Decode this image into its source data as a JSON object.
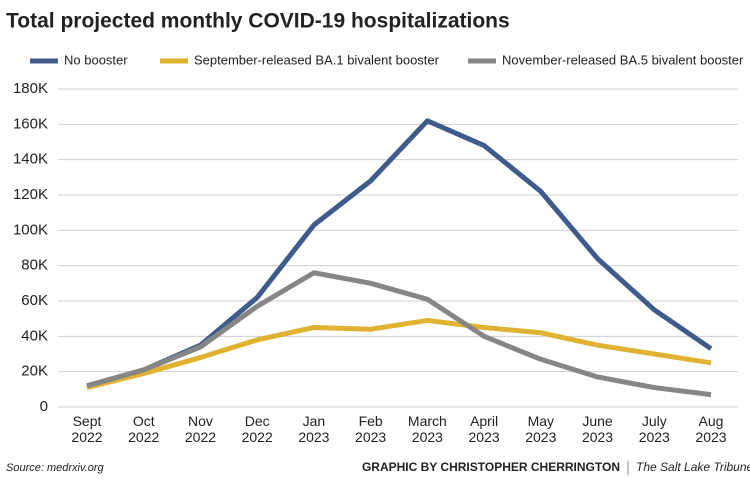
{
  "chart_data": {
    "type": "line",
    "title": "Total projected monthly COVID-19 hospitalizations",
    "categories": [
      "Sept 2022",
      "Oct 2022",
      "Nov 2022",
      "Dec 2022",
      "Jan 2023",
      "Feb 2023",
      "March 2023",
      "April 2023",
      "May 2023",
      "June 2023",
      "July 2023",
      "Aug 2023"
    ],
    "series": [
      {
        "name": "No booster",
        "color": "#3f5b8c",
        "values": [
          12000,
          21000,
          35000,
          62000,
          103000,
          128000,
          162000,
          148000,
          122000,
          84000,
          55000,
          33000
        ]
      },
      {
        "name": "September-released BA.1 bivalent booster",
        "color": "#e0b232",
        "values": [
          11000,
          19000,
          28000,
          38000,
          45000,
          44000,
          49000,
          45000,
          42000,
          35000,
          30000,
          25000
        ]
      },
      {
        "name": "November-released BA.5 bivalent booster",
        "color": "#868686",
        "values": [
          12000,
          21000,
          34000,
          57000,
          76000,
          70000,
          61000,
          40000,
          27000,
          17000,
          11000,
          7000
        ]
      }
    ],
    "ylim": [
      0,
      180000
    ],
    "yticks": [
      0,
      {
        "value": 20000,
        "label": "20K"
      },
      {
        "value": 40000,
        "label": "40K"
      },
      {
        "value": 60000,
        "label": "60K"
      },
      {
        "value": 80000,
        "label": "80K"
      },
      {
        "value": 100000,
        "label": "100K"
      },
      {
        "value": 120000,
        "label": "120K"
      },
      {
        "value": 140000,
        "label": "140K"
      },
      {
        "value": 160000,
        "label": "160K"
      },
      {
        "value": 180000,
        "label": "180K"
      }
    ],
    "grid": true,
    "source": "Source: medrxiv.org",
    "credit": "GRAPHIC BY CHRISTOPHER CHERRINGTON",
    "publisher": "The Salt Lake Tribune"
  }
}
